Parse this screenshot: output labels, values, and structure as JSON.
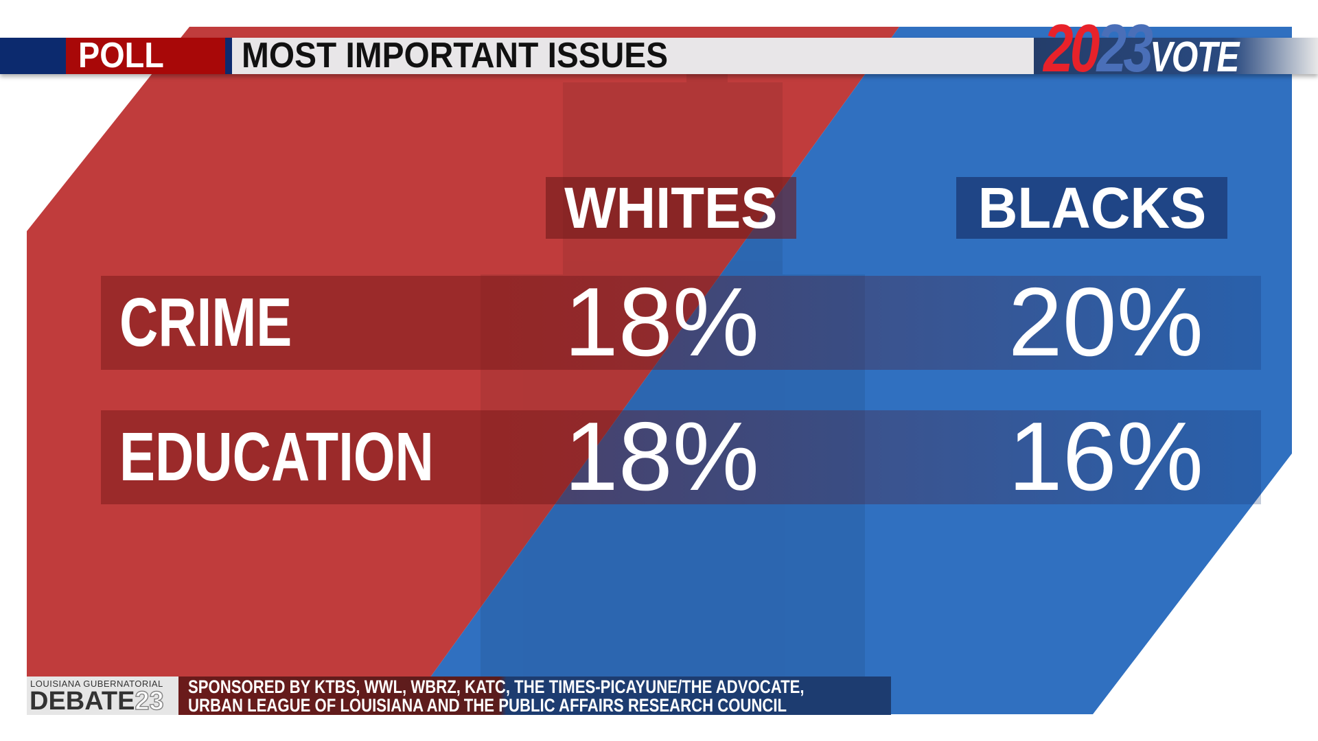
{
  "header": {
    "badge": "POLL",
    "title": "MOST IMPORTANT ISSUES",
    "brand_year_a": "20",
    "brand_year_b": "23",
    "brand_word": "VOTE"
  },
  "columns": [
    "WHITES",
    "BLACKS"
  ],
  "rows": [
    {
      "label": "CRIME",
      "whites": "18%",
      "blacks": "20%"
    },
    {
      "label": "EDUCATION",
      "whites": "18%",
      "blacks": "16%"
    }
  ],
  "footer": {
    "logo_top": "LOUISIANA GUBERNATORIAL",
    "logo_main": "DEBATE",
    "logo_year": "23",
    "line1": "SPONSORED BY KTBS, WWL, WBRZ, KATC, THE TIMES-PICAYUNE/THE ADVOCATE,",
    "line2": "URBAN LEAGUE OF LOUISIANA AND THE PUBLIC AFFAIRS RESEARCH COUNCIL"
  },
  "colors": {
    "red": "#c03c3c",
    "blue": "#3070c0",
    "navy": "#0c2a6e",
    "poll_red": "#a80808"
  }
}
